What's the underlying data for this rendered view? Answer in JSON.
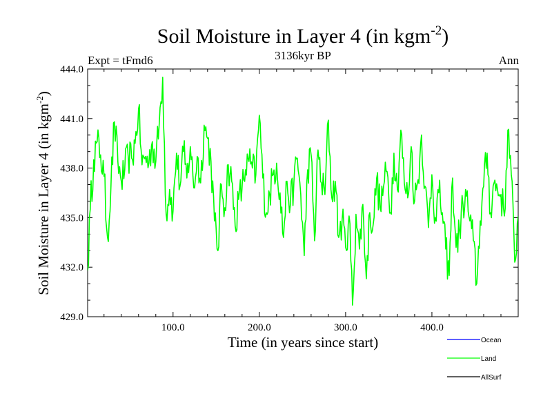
{
  "chart_data": {
    "type": "line",
    "title": "Soil Moisture in Layer 4 (in kgm",
    "title_sup": "-2",
    "title_close": ")",
    "left_label": "Expt = tFmd6",
    "center_label": "3136kyr BP",
    "right_label": "Ann",
    "xlabel": "Time (in years since start)",
    "ylabel": "Soil Moisture in Layer 4 (in kgm",
    "ylabel_sup": "-2",
    "ylabel_close": ")",
    "xlim": [
      1,
      500
    ],
    "ylim": [
      429.0,
      444.0
    ],
    "x_ticks": [
      100,
      200,
      300,
      400
    ],
    "x_tick_labels": [
      "100.0",
      "200.0",
      "300.0",
      "400.0"
    ],
    "y_ticks": [
      429,
      432,
      435,
      438,
      441,
      444
    ],
    "y_tick_labels": [
      "429.0",
      "432.0",
      "435.0",
      "438.0",
      "441.0",
      "444.0"
    ],
    "legend": [
      {
        "name": "Ocean",
        "color": "#0000ff"
      },
      {
        "name": "Land",
        "color": "#00ff00"
      },
      {
        "name": "AllSurf",
        "color": "#000000"
      }
    ],
    "series": [
      {
        "name": "Land",
        "color": "#00ff00",
        "anchors_x": [
          1,
          4,
          8,
          12,
          16,
          20,
          24,
          28,
          32,
          36,
          40,
          44,
          48,
          52,
          56,
          60,
          64,
          68,
          72,
          76,
          80,
          84,
          88,
          92,
          96,
          100,
          104,
          108,
          112,
          116,
          120,
          124,
          128,
          132,
          136,
          140,
          144,
          148,
          152,
          156,
          160,
          164,
          168,
          172,
          176,
          180,
          184,
          188,
          192,
          196,
          200,
          204,
          208,
          212,
          216,
          220,
          224,
          228,
          232,
          236,
          240,
          244,
          248,
          252,
          256,
          260,
          264,
          268,
          272,
          276,
          280,
          284,
          288,
          292,
          296,
          300,
          304,
          308,
          312,
          316,
          320,
          324,
          328,
          332,
          336,
          340,
          344,
          348,
          352,
          356,
          360,
          364,
          368,
          372,
          376,
          380,
          384,
          388,
          392,
          396,
          400,
          404,
          408,
          412,
          416,
          420,
          424,
          428,
          432,
          436,
          440,
          444,
          448,
          452,
          456,
          460,
          464,
          468,
          472,
          476,
          480,
          484,
          488,
          492,
          496,
          500
        ],
        "anchors_y": [
          431.8,
          435.5,
          438.5,
          439.6,
          438.8,
          437.5,
          433.8,
          436.9,
          440.8,
          438.4,
          437.2,
          437.9,
          438.7,
          438.6,
          439.5,
          441.6,
          438.2,
          438.7,
          438.3,
          439.6,
          438.4,
          440.7,
          443.5,
          435.2,
          436.7,
          435.4,
          438.9,
          436.9,
          439.0,
          437.4,
          439.3,
          436.8,
          438.7,
          437.1,
          440.6,
          439.8,
          438.4,
          434.8,
          433.0,
          437.0,
          435.6,
          438.2,
          437.2,
          434.5,
          436.1,
          436.8,
          437.9,
          438.4,
          438.0,
          437.6,
          441.2,
          437.4,
          435.3,
          436.4,
          437.6,
          438.3,
          436.5,
          433.8,
          437.2,
          435.8,
          437.1,
          438.6,
          436.4,
          432.7,
          437.9,
          438.8,
          433.6,
          439.1,
          437.1,
          436.4,
          440.9,
          436.2,
          437.2,
          433.8,
          434.9,
          433.2,
          435.1,
          429.7,
          435.2,
          433.1,
          435.8,
          431.3,
          435.3,
          434.6,
          437.4,
          435.6,
          436.9,
          437.8,
          435.3,
          438.9,
          436.7,
          440.3,
          437.1,
          436.2,
          439.3,
          436.0,
          437.3,
          440.0,
          436.9,
          434.4,
          437.6,
          435.0,
          436.5,
          435.3,
          433.1,
          431.5,
          437.4,
          433.2,
          434.2,
          435.8,
          436.3,
          434.8,
          433.6,
          431.0,
          434.8,
          436.9,
          438.9,
          435.3,
          437.1,
          436.7,
          436.4,
          435.1,
          440.3,
          437.6,
          432.3,
          435.1
        ]
      }
    ]
  }
}
